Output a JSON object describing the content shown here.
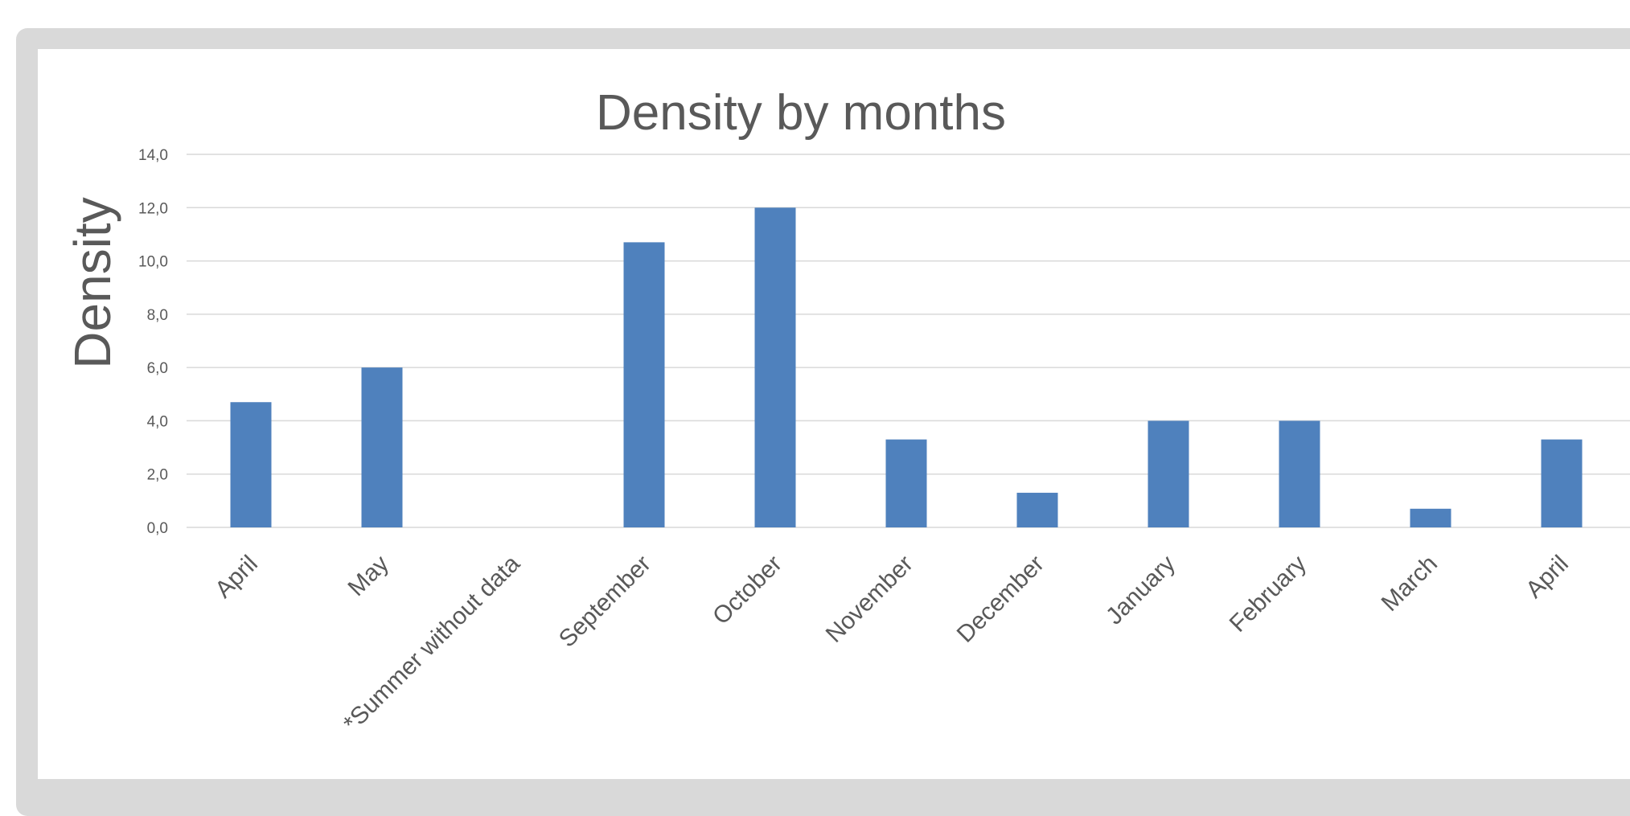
{
  "chart_data": {
    "type": "bar",
    "title": "Density by months",
    "xlabel": "",
    "ylabel": "Density",
    "ylim": [
      0,
      14
    ],
    "yticks": [
      "0,0",
      "2,0",
      "4,0",
      "6,0",
      "8,0",
      "10,0",
      "12,0",
      "14,0"
    ],
    "ytick_values": [
      0,
      2,
      4,
      6,
      8,
      10,
      12,
      14
    ],
    "categories": [
      "April",
      "May",
      "*Summer without data",
      "September",
      "October",
      "November",
      "December",
      "January",
      "February",
      "March",
      "April"
    ],
    "values": [
      4.7,
      6.0,
      null,
      10.7,
      12.0,
      3.3,
      1.3,
      4.0,
      4.0,
      0.7,
      3.3
    ],
    "grid": true,
    "legend": "none",
    "bar_color": "#4f81bd"
  }
}
